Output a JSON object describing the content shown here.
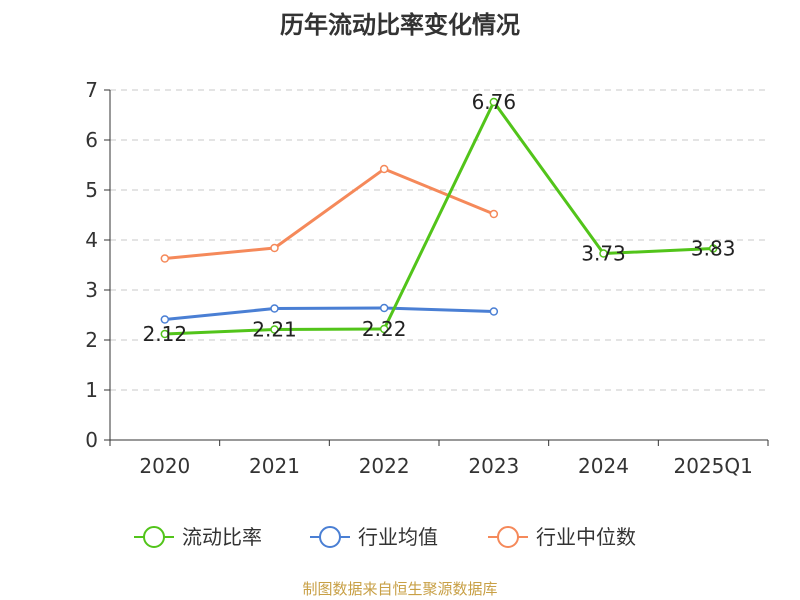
{
  "chart_data": {
    "type": "line",
    "title": "历年流动比率变化情况",
    "categories": [
      "2020",
      "2021",
      "2022",
      "2023",
      "2024",
      "2025Q1"
    ],
    "ylim": [
      0,
      7
    ],
    "yticks": [
      0,
      1,
      2,
      3,
      4,
      5,
      6,
      7
    ],
    "grid": true,
    "legend_position": "bottom",
    "series": [
      {
        "name": "流动比率",
        "color": "#52c41a",
        "values": [
          2.12,
          2.21,
          2.22,
          6.76,
          3.73,
          3.83
        ],
        "labels": [
          "2.12",
          "2.21",
          "2.22",
          "6.76",
          "3.73",
          "3.83"
        ]
      },
      {
        "name": "行业均值",
        "color": "#4a7fd4",
        "values": [
          2.41,
          2.63,
          2.64,
          2.57,
          null,
          null
        ]
      },
      {
        "name": "行业中位数",
        "color": "#f5895a",
        "values": [
          3.63,
          3.84,
          5.42,
          4.52,
          null,
          null
        ]
      }
    ]
  },
  "source": "制图数据来自恒生聚源数据库"
}
